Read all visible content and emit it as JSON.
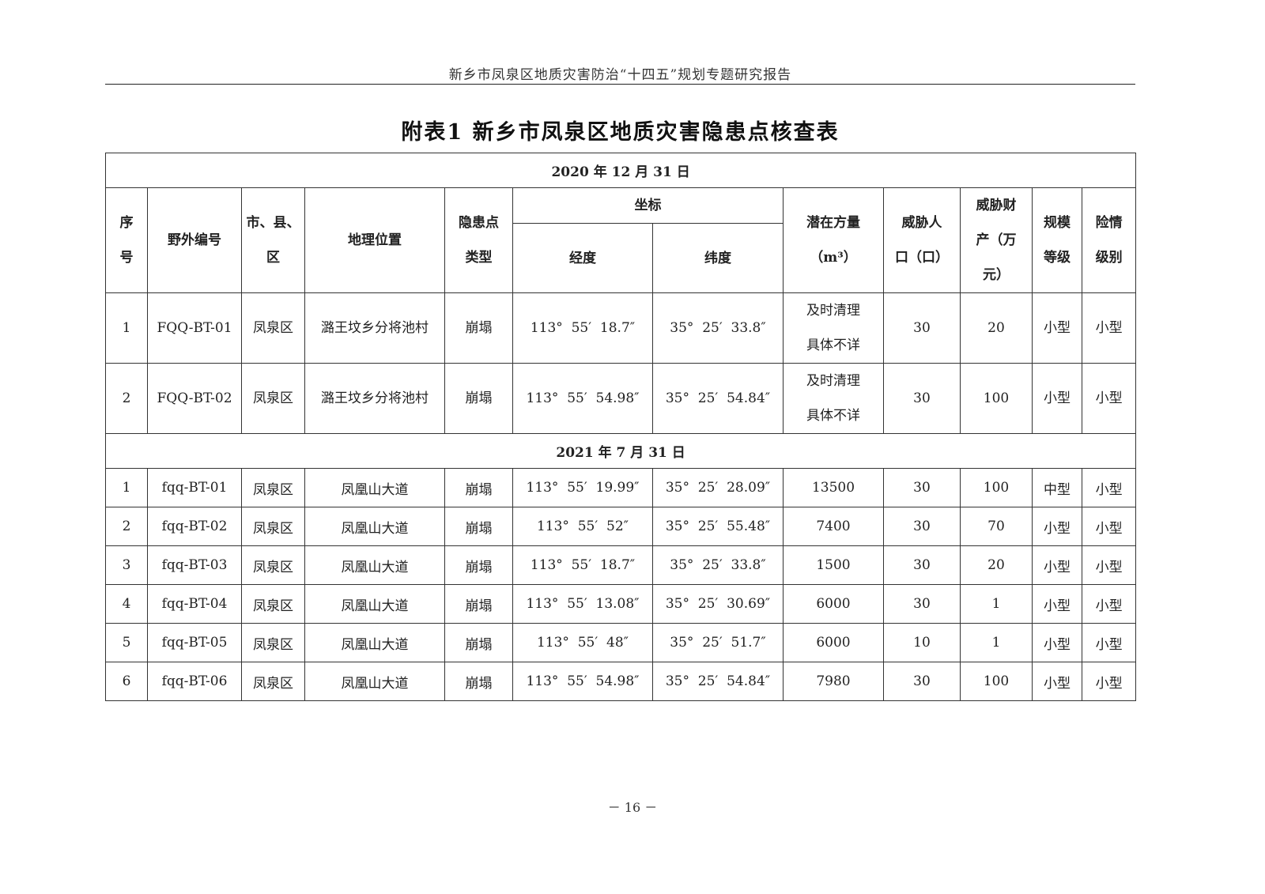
{
  "running_header": "新乡市凤泉区地质灾害防治“十四五”规划专题研究报告",
  "title": "附表1   新乡市凤泉区地质灾害隐患点核查表",
  "columns": {
    "seq": [
      "序",
      "号"
    ],
    "field_id": "野外编号",
    "district": [
      "市、县、",
      "区"
    ],
    "location": "地理位置",
    "type": [
      "隐患点",
      "类型"
    ],
    "coord": "坐标",
    "lon": "经度",
    "lat": "纬度",
    "volume": [
      "潜在方量",
      "（m³）"
    ],
    "people": [
      "威胁人",
      "口（口）"
    ],
    "property": [
      "威胁财",
      "产（万",
      "元）"
    ],
    "scale": [
      "规模",
      "等级"
    ],
    "danger": [
      "险情",
      "级别"
    ]
  },
  "sections": [
    {
      "date": "2020 年 12 月 31 日",
      "rows": [
        {
          "seq": "1",
          "field_id": "FQQ-BT-01",
          "district": "凤泉区",
          "location": "潞王坟乡分将池村",
          "type": "崩塌",
          "lon": "113°  55′  18.7″",
          "lat": "35°  25′  33.8″",
          "volume": [
            "及时清理",
            "具体不详"
          ],
          "people": "30",
          "property": "20",
          "scale": "小型",
          "danger": "小型"
        },
        {
          "seq": "2",
          "field_id": "FQQ-BT-02",
          "district": "凤泉区",
          "location": "潞王坟乡分将池村",
          "type": "崩塌",
          "lon": "113°  55′  54.98″",
          "lat": "35°  25′  54.84″",
          "volume": [
            "及时清理",
            "具体不详"
          ],
          "people": "30",
          "property": "100",
          "scale": "小型",
          "danger": "小型"
        }
      ]
    },
    {
      "date": "2021 年 7 月 31 日",
      "rows": [
        {
          "seq": "1",
          "field_id": "fqq-BT-01",
          "district": "凤泉区",
          "location": "凤凰山大道",
          "type": "崩塌",
          "lon": "113°  55′  19.99″",
          "lat": "35°  25′  28.09″",
          "volume": [
            "13500"
          ],
          "people": "30",
          "property": "100",
          "scale": "中型",
          "danger": "小型"
        },
        {
          "seq": "2",
          "field_id": "fqq-BT-02",
          "district": "凤泉区",
          "location": "凤凰山大道",
          "type": "崩塌",
          "lon": "113°  55′  52″",
          "lat": "35°  25′  55.48″",
          "volume": [
            "7400"
          ],
          "people": "30",
          "property": "70",
          "scale": "小型",
          "danger": "小型"
        },
        {
          "seq": "3",
          "field_id": "fqq-BT-03",
          "district": "凤泉区",
          "location": "凤凰山大道",
          "type": "崩塌",
          "lon": "113°  55′  18.7″",
          "lat": "35°  25′  33.8″",
          "volume": [
            "1500"
          ],
          "people": "30",
          "property": "20",
          "scale": "小型",
          "danger": "小型"
        },
        {
          "seq": "4",
          "field_id": "fqq-BT-04",
          "district": "凤泉区",
          "location": "凤凰山大道",
          "type": "崩塌",
          "lon": "113°  55′  13.08″",
          "lat": "35°  25′  30.69″",
          "volume": [
            "6000"
          ],
          "people": "30",
          "property": "1",
          "scale": "小型",
          "danger": "小型"
        },
        {
          "seq": "5",
          "field_id": "fqq-BT-05",
          "district": "凤泉区",
          "location": "凤凰山大道",
          "type": "崩塌",
          "lon": "113°  55′  48″",
          "lat": "35°  25′  51.7″",
          "volume": [
            "6000"
          ],
          "people": "10",
          "property": "1",
          "scale": "小型",
          "danger": "小型"
        },
        {
          "seq": "6",
          "field_id": "fqq-BT-06",
          "district": "凤泉区",
          "location": "凤凰山大道",
          "type": "崩塌",
          "lon": "113°  55′  54.98″",
          "lat": "35°  25′  54.84″",
          "volume": [
            "7980"
          ],
          "people": "30",
          "property": "100",
          "scale": "小型",
          "danger": "小型"
        }
      ]
    }
  ],
  "page_number": "－ 16 －"
}
